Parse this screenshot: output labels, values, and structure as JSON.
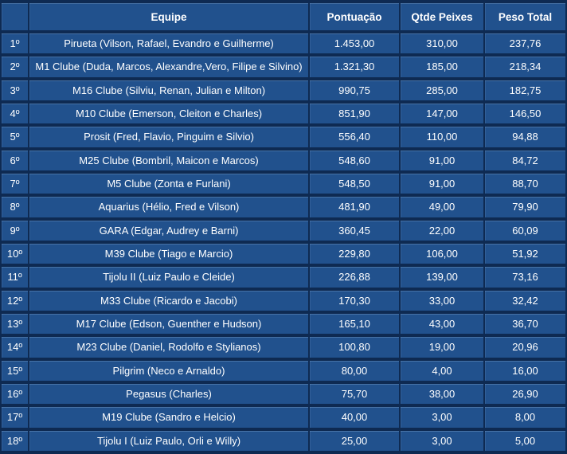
{
  "colors": {
    "cell_fill": "#21518D",
    "grid_background": "#0E2A52",
    "text": "#FFFFFF"
  },
  "chart_data": {
    "type": "table",
    "columns": [
      "",
      "Equipe",
      "Pontuação",
      "Qtde Peixes",
      "Peso Total"
    ],
    "rows": [
      [
        "1º",
        "Pirueta (Vilson, Rafael, Evandro e Guilherme)",
        "1.453,00",
        "310,00",
        "237,76"
      ],
      [
        "2º",
        "M1 Clube (Duda, Marcos, Alexandre,Vero, Filipe e Silvino)",
        "1.321,30",
        "185,00",
        "218,34"
      ],
      [
        "3º",
        "M16 Clube (Silviu, Renan, Julian e Milton)",
        "990,75",
        "285,00",
        "182,75"
      ],
      [
        "4º",
        "M10 Clube (Emerson, Cleiton e Charles)",
        "851,90",
        "147,00",
        "146,50"
      ],
      [
        "5º",
        "Prosit (Fred, Flavio, Pinguim e Silvio)",
        "556,40",
        "110,00",
        "94,88"
      ],
      [
        "6º",
        "M25 Clube (Bombril, Maicon e Marcos)",
        "548,60",
        "91,00",
        "84,72"
      ],
      [
        "7º",
        "M5 Clube (Zonta e Furlani)",
        "548,50",
        "91,00",
        "88,70"
      ],
      [
        "8º",
        "Aquarius (Hélio, Fred e Vilson)",
        "481,90",
        "49,00",
        "79,90"
      ],
      [
        "9º",
        "GARA (Edgar, Audrey e Barni)",
        "360,45",
        "22,00",
        "60,09"
      ],
      [
        "10º",
        "M39 Clube (Tiago e Marcio)",
        "229,80",
        "106,00",
        "51,92"
      ],
      [
        "11º",
        "Tijolu II (Luiz Paulo e Cleide)",
        "226,88",
        "139,00",
        "73,16"
      ],
      [
        "12º",
        "M33 Clube (Ricardo e Jacobi)",
        "170,30",
        "33,00",
        "32,42"
      ],
      [
        "13º",
        "M17 Clube (Edson, Guenther e Hudson)",
        "165,10",
        "43,00",
        "36,70"
      ],
      [
        "14º",
        "M23 Clube (Daniel, Rodolfo e Stylianos)",
        "100,80",
        "19,00",
        "20,96"
      ],
      [
        "15º",
        "Pilgrim (Neco e Arnaldo)",
        "80,00",
        "4,00",
        "16,00"
      ],
      [
        "16º",
        "Pegasus (Charles)",
        "75,70",
        "38,00",
        "26,90"
      ],
      [
        "17º",
        "M19 Clube (Sandro e Helcio)",
        "40,00",
        "3,00",
        "8,00"
      ],
      [
        "18º",
        "Tijolu I (Luiz Paulo, Orli e Willy)",
        "25,00",
        "3,00",
        "5,00"
      ]
    ]
  }
}
